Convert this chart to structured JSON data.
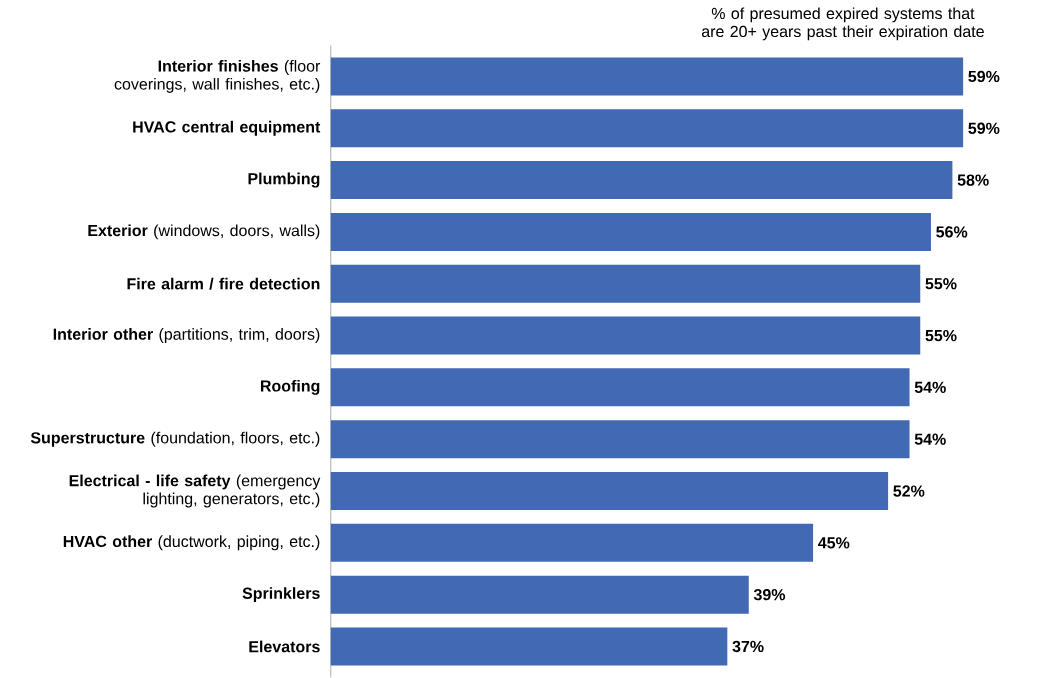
{
  "chart_data": {
    "type": "bar",
    "orientation": "horizontal",
    "title": "% of presumed expired systems that are 20+ years past their expiration date",
    "categories": [
      "**Interior finishes** (floor coverings, wall finishes, etc.)",
      "HVAC central equipment",
      "Plumbing",
      "**Exterior** (windows, doors, walls)",
      "Fire alarm / fire detection",
      "**Interior other** (partitions, trim, doors)",
      "Roofing",
      "**Superstructure** (foundation, floors, etc.)",
      "**Electrical - life safety** (emergency lighting, generators, etc.)",
      "**HVAC other** (ductwork, piping, etc.)",
      "Sprinklers",
      "Elevators"
    ],
    "values": [
      59,
      59,
      58,
      56,
      55,
      55,
      54,
      54,
      52,
      45,
      39,
      37
    ],
    "value_labels": [
      "59%",
      "59%",
      "58%",
      "56%",
      "55%",
      "55%",
      "54%",
      "54%",
      "52%",
      "45%",
      "39%",
      "37%"
    ],
    "color": "#4169b4"
  }
}
